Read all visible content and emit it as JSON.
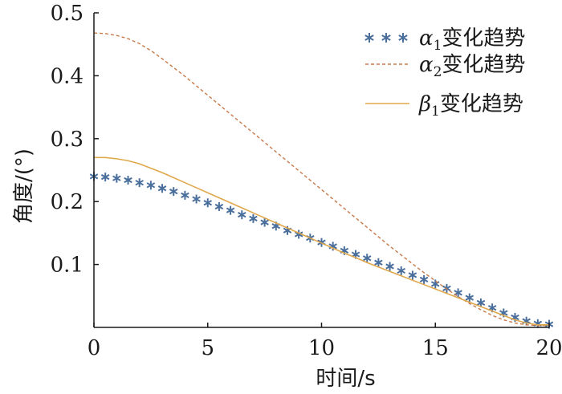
{
  "chart_data": {
    "type": "line",
    "xlabel": "时间/s",
    "ylabel": "角度/(°)",
    "xlim": [
      0,
      20
    ],
    "ylim": [
      0,
      0.5
    ],
    "x_ticks": [
      0,
      5,
      10,
      15,
      20
    ],
    "y_ticks": [
      0.1,
      0.2,
      0.3,
      0.4,
      0.5
    ],
    "x_tick_labels": [
      "0",
      "5",
      "10",
      "15",
      "20"
    ],
    "y_tick_labels": [
      "0.1",
      "0.2",
      "0.3",
      "0.4",
      "0.5"
    ],
    "grid": false,
    "legend_position": "top-right",
    "series": [
      {
        "name": "α1变化趋势",
        "symbol": "α",
        "subscript": "1",
        "suffix": "变化趋势",
        "style": "asterisk-markers",
        "color": "#4a6f9c",
        "x": [
          0,
          0.5,
          1,
          1.5,
          2,
          2.5,
          3,
          3.5,
          4,
          4.5,
          5,
          5.5,
          6,
          6.5,
          7,
          7.5,
          8,
          8.5,
          9,
          9.5,
          10,
          10.5,
          11,
          11.5,
          12,
          12.5,
          13,
          13.5,
          14,
          14.5,
          15,
          15.5,
          16,
          16.5,
          17,
          17.5,
          18,
          18.5,
          19,
          19.5,
          20
        ],
        "values": [
          0.24,
          0.239,
          0.237,
          0.234,
          0.23,
          0.226,
          0.221,
          0.216,
          0.21,
          0.204,
          0.198,
          0.192,
          0.186,
          0.179,
          0.173,
          0.167,
          0.161,
          0.154,
          0.148,
          0.142,
          0.135,
          0.129,
          0.122,
          0.116,
          0.11,
          0.103,
          0.097,
          0.09,
          0.083,
          0.076,
          0.069,
          0.062,
          0.055,
          0.047,
          0.039,
          0.031,
          0.023,
          0.016,
          0.01,
          0.006,
          0.005
        ]
      },
      {
        "name": "α2变化趋势",
        "symbol": "α",
        "subscript": "2",
        "suffix": "变化趋势",
        "style": "dashed",
        "color": "#c9794a",
        "x": [
          0,
          0.5,
          1,
          1.5,
          2,
          2.5,
          3,
          3.5,
          4,
          4.5,
          5,
          5.5,
          6,
          6.5,
          7,
          7.5,
          8,
          8.5,
          9,
          9.5,
          10,
          10.5,
          11,
          11.5,
          12,
          12.5,
          13,
          13.5,
          14,
          14.5,
          15,
          15.5,
          16,
          16.5,
          17,
          17.5,
          18,
          18.5,
          19,
          19.5,
          20
        ],
        "values": [
          0.468,
          0.467,
          0.464,
          0.459,
          0.451,
          0.44,
          0.427,
          0.413,
          0.399,
          0.384,
          0.369,
          0.354,
          0.339,
          0.324,
          0.309,
          0.294,
          0.279,
          0.264,
          0.249,
          0.234,
          0.219,
          0.204,
          0.189,
          0.174,
          0.159,
          0.144,
          0.129,
          0.115,
          0.101,
          0.087,
          0.074,
          0.061,
          0.049,
          0.038,
          0.028,
          0.019,
          0.012,
          0.007,
          0.004,
          0.003,
          0.003
        ]
      },
      {
        "name": "β1变化趋势",
        "symbol": "β",
        "subscript": "1",
        "suffix": "变化趋势",
        "style": "solid",
        "color": "#e0a84c",
        "x": [
          0,
          0.5,
          1,
          1.5,
          2,
          2.5,
          3,
          3.5,
          4,
          4.5,
          5,
          5.5,
          6,
          6.5,
          7,
          7.5,
          8,
          8.5,
          9,
          9.5,
          10,
          10.5,
          11,
          11.5,
          12,
          12.5,
          13,
          13.5,
          14,
          14.5,
          15,
          15.5,
          16,
          16.5,
          17,
          17.5,
          18,
          18.5,
          19,
          19.5,
          20
        ],
        "values": [
          0.27,
          0.27,
          0.268,
          0.265,
          0.26,
          0.253,
          0.246,
          0.238,
          0.23,
          0.222,
          0.214,
          0.206,
          0.198,
          0.19,
          0.182,
          0.174,
          0.166,
          0.158,
          0.15,
          0.142,
          0.134,
          0.126,
          0.118,
          0.111,
          0.103,
          0.096,
          0.089,
          0.082,
          0.075,
          0.068,
          0.061,
          0.054,
          0.047,
          0.04,
          0.033,
          0.026,
          0.019,
          0.012,
          0.007,
          0.004,
          0.004
        ]
      }
    ]
  }
}
